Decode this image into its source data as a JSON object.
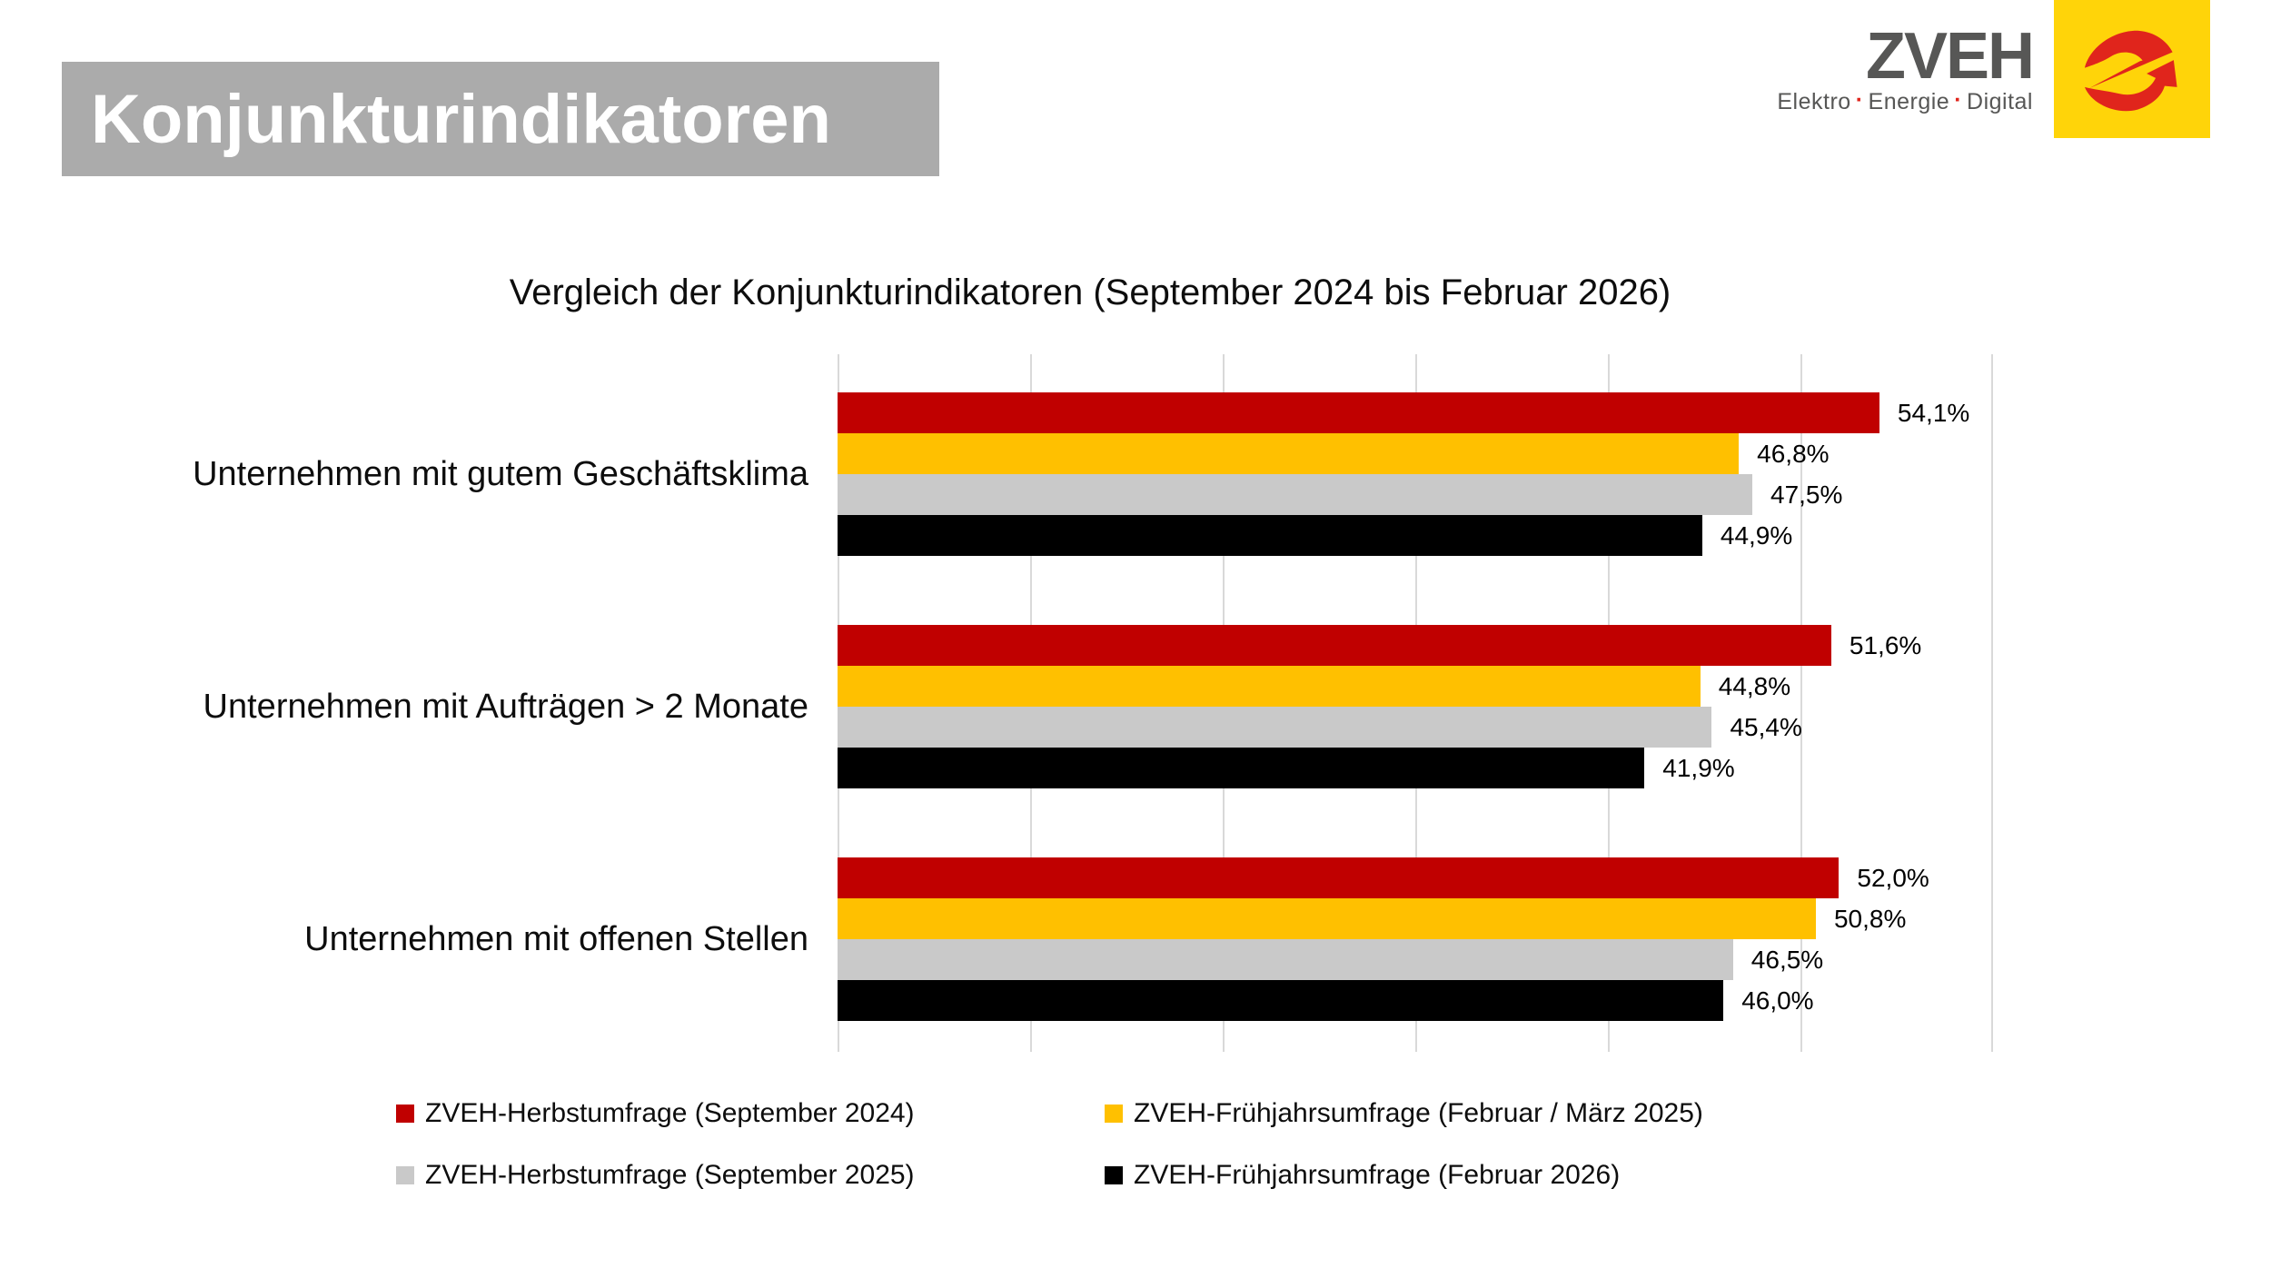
{
  "page_title": {
    "text": "Konjunkturindikatoren",
    "bg_color": "#ABABAB",
    "text_color": "#FFFFFF"
  },
  "logo": {
    "brand": "ZVEH",
    "tagline_words": [
      "Elektro",
      "Energie",
      "Digital"
    ],
    "tagline_separator": "·",
    "colors": {
      "brand_gray": "#575756",
      "square_yellow": "#FFD409",
      "mark_red": "#E0251C"
    }
  },
  "chart_data": {
    "type": "bar",
    "orientation": "horizontal",
    "title": "Vergleich der Konjunkturindikatoren (September 2024 bis Februar 2026)",
    "categories": [
      "Unternehmen mit gutem Geschäftsklima",
      "Unternehmen mit Aufträgen > 2 Monate",
      "Unternehmen mit offenen Stellen"
    ],
    "series": [
      {
        "name": "ZVEH-Herbstumfrage (September 2024)",
        "color": "#C00000",
        "values": [
          54.1,
          51.6,
          52.0
        ],
        "labels": [
          "54,1%",
          "51,6%",
          "52,0%"
        ]
      },
      {
        "name": "ZVEH-Frühjahrsumfrage (Februar / März 2025)",
        "color": "#FFC000",
        "values": [
          46.8,
          44.8,
          50.8
        ],
        "labels": [
          "46,8%",
          "44,8%",
          "50,8%"
        ]
      },
      {
        "name": "ZVEH-Herbstumfrage (September 2025)",
        "color": "#C9C9C9",
        "values": [
          47.5,
          45.4,
          46.5
        ],
        "labels": [
          "47,5%",
          "45,4%",
          "46,5%"
        ]
      },
      {
        "name": "ZVEH-Frühjahrsumfrage (Februar 2026)",
        "color": "#000000",
        "values": [
          44.9,
          41.9,
          46.0
        ],
        "labels": [
          "44,9%",
          "41,9%",
          "46,0%"
        ]
      }
    ],
    "xlim": [
      0,
      60
    ],
    "grid_step": 10,
    "grid": true,
    "gridline_color": "#D9D9D9",
    "value_suffix": "%",
    "decimal_separator": ",",
    "legend_position": "bottom",
    "data_labels": true
  }
}
